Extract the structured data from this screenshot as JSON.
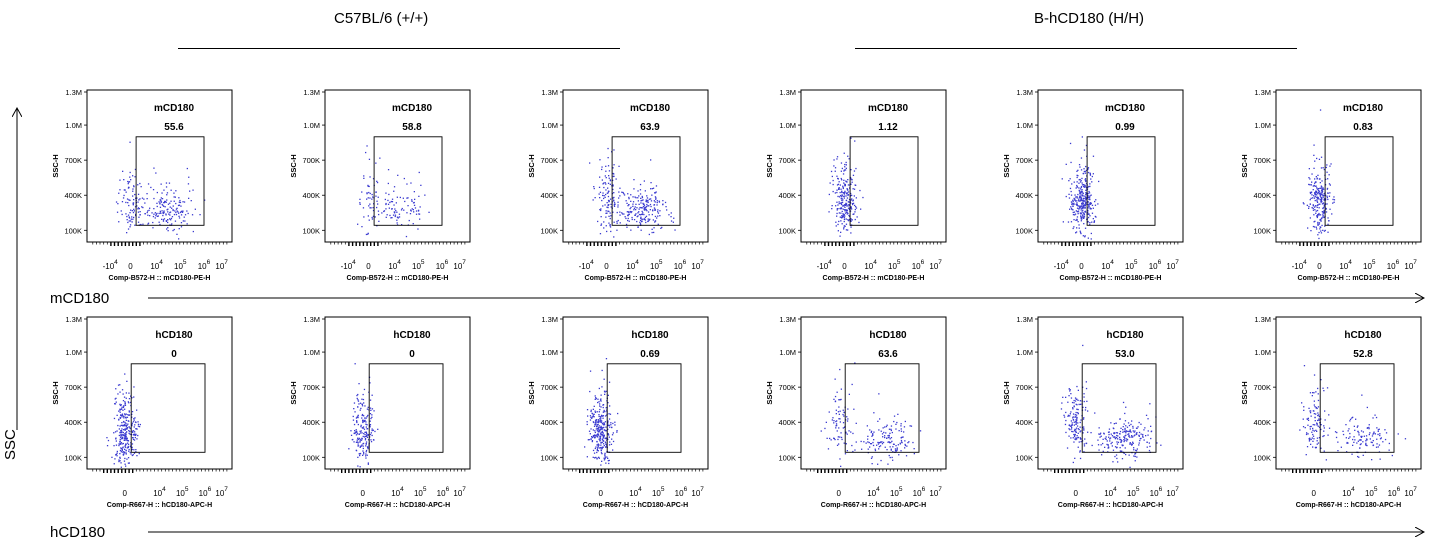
{
  "groups": [
    {
      "label": "C57BL/6 (+/+)"
    },
    {
      "label": "B-hCD180 (H/H)"
    }
  ],
  "axis_labels": {
    "y": "SSC",
    "row1_x": "mCD180",
    "row2_x": "hCD180"
  },
  "chart_data": [
    {
      "type": "scatter",
      "row": 1,
      "col": 1,
      "gate_label": "mCD180",
      "gate_value": "55.6",
      "xlabel": "Comp-B572-H :: mCD180-PE-H",
      "ylabel": "SSC-H",
      "xticks": [
        "-10^4",
        "0",
        "10^4",
        "10^5",
        "10^6",
        "10^7"
      ],
      "yticks": [
        "100K",
        "400K",
        "700K",
        "1.0M",
        "1.3M"
      ],
      "ylim": [
        0,
        1300000
      ],
      "gate_x": [
        1000,
        1000000
      ],
      "gate_y": [
        100000,
        900000
      ],
      "populations": [
        {
          "cx": 0,
          "cy": 350000,
          "n": 90
        },
        {
          "cx": 20000,
          "cy": 270000,
          "n": 190
        }
      ]
    },
    {
      "type": "scatter",
      "row": 1,
      "col": 2,
      "gate_label": "mCD180",
      "gate_value": "58.8",
      "xlabel": "Comp-B572-H :: mCD180-PE-H",
      "ylabel": "SSC-H",
      "xticks": [
        "-10^4",
        "0",
        "10^4",
        "10^5",
        "10^6",
        "10^7"
      ],
      "yticks": [
        "100K",
        "400K",
        "700K",
        "1.0M",
        "1.3M"
      ],
      "ylim": [
        0,
        1300000
      ],
      "gate_x": [
        1000,
        1000000
      ],
      "gate_y": [
        100000,
        900000
      ],
      "populations": [
        {
          "cx": 0,
          "cy": 360000,
          "n": 55
        },
        {
          "cx": 20000,
          "cy": 280000,
          "n": 100
        }
      ]
    },
    {
      "type": "scatter",
      "row": 1,
      "col": 3,
      "gate_label": "mCD180",
      "gate_value": "63.9",
      "xlabel": "Comp-B572-H :: mCD180-PE-H",
      "ylabel": "SSC-H",
      "xticks": [
        "-10^4",
        "0",
        "10^4",
        "10^5",
        "10^6",
        "10^7"
      ],
      "yticks": [
        "100K",
        "400K",
        "700K",
        "1.0M",
        "1.3M"
      ],
      "ylim": [
        0,
        1300000
      ],
      "gate_x": [
        1000,
        1000000
      ],
      "gate_y": [
        100000,
        900000
      ],
      "populations": [
        {
          "cx": 0,
          "cy": 380000,
          "n": 110
        },
        {
          "cx": 20000,
          "cy": 270000,
          "n": 240
        }
      ]
    },
    {
      "type": "scatter",
      "row": 1,
      "col": 4,
      "gate_label": "mCD180",
      "gate_value": "1.12",
      "xlabel": "Comp-B572-H :: mCD180-PE-H",
      "ylabel": "SSC-H",
      "xticks": [
        "-10^4",
        "0",
        "10^4",
        "10^5",
        "10^6",
        "10^7"
      ],
      "yticks": [
        "100K",
        "400K",
        "700K",
        "1.0M",
        "1.3M"
      ],
      "ylim": [
        0,
        1300000
      ],
      "gate_x": [
        1000,
        1000000
      ],
      "gate_y": [
        100000,
        900000
      ],
      "populations": [
        {
          "cx": 0,
          "cy": 330000,
          "n": 260
        }
      ]
    },
    {
      "type": "scatter",
      "row": 1,
      "col": 5,
      "gate_label": "mCD180",
      "gate_value": "0.99",
      "xlabel": "Comp-B572-H :: mCD180-PE-H",
      "ylabel": "SSC-H",
      "xticks": [
        "-10^4",
        "0",
        "10^4",
        "10^5",
        "10^6",
        "10^7"
      ],
      "yticks": [
        "100K",
        "400K",
        "700K",
        "1.0M",
        "1.3M"
      ],
      "ylim": [
        0,
        1300000
      ],
      "gate_x": [
        1000,
        1000000
      ],
      "gate_y": [
        100000,
        900000
      ],
      "populations": [
        {
          "cx": 0,
          "cy": 340000,
          "n": 330
        }
      ]
    },
    {
      "type": "scatter",
      "row": 1,
      "col": 6,
      "gate_label": "mCD180",
      "gate_value": "0.83",
      "xlabel": "Comp-B572-H :: mCD180-PE-H",
      "ylabel": "SSC-H",
      "xticks": [
        "-10^4",
        "0",
        "10^4",
        "10^5",
        "10^6",
        "10^7"
      ],
      "yticks": [
        "100K",
        "400K",
        "700K",
        "1.0M",
        "1.3M"
      ],
      "ylim": [
        0,
        1300000
      ],
      "gate_x": [
        1000,
        1000000
      ],
      "gate_y": [
        100000,
        900000
      ],
      "populations": [
        {
          "cx": 0,
          "cy": 340000,
          "n": 260
        }
      ]
    },
    {
      "type": "scatter",
      "row": 2,
      "col": 1,
      "gate_label": "hCD180",
      "gate_value": "0",
      "xlabel": "Comp-R667-H :: hCD180-APC-H",
      "ylabel": "SSC-H",
      "xticks": [
        "0",
        "10^4",
        "10^5",
        "10^6",
        "10^7"
      ],
      "yticks": [
        "100K",
        "400K",
        "700K",
        "1.0M",
        "1.3M"
      ],
      "ylim": [
        0,
        1300000
      ],
      "gate_x": [
        1000,
        1000000
      ],
      "gate_y": [
        100000,
        900000
      ],
      "populations": [
        {
          "cx": 0,
          "cy": 310000,
          "n": 300
        }
      ]
    },
    {
      "type": "scatter",
      "row": 2,
      "col": 2,
      "gate_label": "hCD180",
      "gate_value": "0",
      "xlabel": "Comp-R667-H :: hCD180-APC-H",
      "ylabel": "SSC-H",
      "xticks": [
        "0",
        "10^4",
        "10^5",
        "10^6",
        "10^7"
      ],
      "yticks": [
        "100K",
        "400K",
        "700K",
        "1.0M",
        "1.3M"
      ],
      "ylim": [
        0,
        1300000
      ],
      "gate_x": [
        1000,
        1000000
      ],
      "gate_y": [
        100000,
        900000
      ],
      "populations": [
        {
          "cx": 0,
          "cy": 320000,
          "n": 200
        }
      ]
    },
    {
      "type": "scatter",
      "row": 2,
      "col": 3,
      "gate_label": "hCD180",
      "gate_value": "0.69",
      "xlabel": "Comp-R667-H :: hCD180-APC-H",
      "ylabel": "SSC-H",
      "xticks": [
        "0",
        "10^4",
        "10^5",
        "10^6",
        "10^7"
      ],
      "yticks": [
        "100K",
        "400K",
        "700K",
        "1.0M",
        "1.3M"
      ],
      "ylim": [
        0,
        1300000
      ],
      "gate_x": [
        1000,
        1000000
      ],
      "gate_y": [
        100000,
        900000
      ],
      "populations": [
        {
          "cx": 0,
          "cy": 320000,
          "n": 330
        }
      ]
    },
    {
      "type": "scatter",
      "row": 2,
      "col": 4,
      "gate_label": "hCD180",
      "gate_value": "63.6",
      "xlabel": "Comp-R667-H :: hCD180-APC-H",
      "ylabel": "SSC-H",
      "xticks": [
        "0",
        "10^4",
        "10^5",
        "10^6",
        "10^7"
      ],
      "yticks": [
        "100K",
        "400K",
        "700K",
        "1.0M",
        "1.3M"
      ],
      "ylim": [
        0,
        1300000
      ],
      "gate_x": [
        1000,
        1000000
      ],
      "gate_y": [
        100000,
        900000
      ],
      "populations": [
        {
          "cx": 0,
          "cy": 380000,
          "n": 80
        },
        {
          "cx": 35000,
          "cy": 270000,
          "n": 150
        }
      ]
    },
    {
      "type": "scatter",
      "row": 2,
      "col": 5,
      "gate_label": "hCD180",
      "gate_value": "53.0",
      "xlabel": "Comp-R667-H :: hCD180-APC-H",
      "ylabel": "SSC-H",
      "xticks": [
        "0",
        "10^4",
        "10^5",
        "10^6",
        "10^7"
      ],
      "yticks": [
        "100K",
        "400K",
        "700K",
        "1.0M",
        "1.3M"
      ],
      "ylim": [
        0,
        1300000
      ],
      "gate_x": [
        1000,
        1000000
      ],
      "gate_y": [
        100000,
        900000
      ],
      "populations": [
        {
          "cx": 0,
          "cy": 400000,
          "n": 160
        },
        {
          "cx": 35000,
          "cy": 260000,
          "n": 220
        }
      ]
    },
    {
      "type": "scatter",
      "row": 2,
      "col": 6,
      "gate_label": "hCD180",
      "gate_value": "52.8",
      "xlabel": "Comp-R667-H :: hCD180-APC-H",
      "ylabel": "SSC-H",
      "xticks": [
        "0",
        "10^4",
        "10^5",
        "10^6",
        "10^7"
      ],
      "yticks": [
        "100K",
        "400K",
        "700K",
        "1.0M",
        "1.3M"
      ],
      "ylim": [
        0,
        1300000
      ],
      "gate_x": [
        1000,
        1000000
      ],
      "gate_y": [
        100000,
        900000
      ],
      "populations": [
        {
          "cx": 0,
          "cy": 380000,
          "n": 110
        },
        {
          "cx": 35000,
          "cy": 270000,
          "n": 120
        }
      ]
    }
  ],
  "colors": {
    "dots": "#3a3ad0",
    "axis": "#000000"
  }
}
